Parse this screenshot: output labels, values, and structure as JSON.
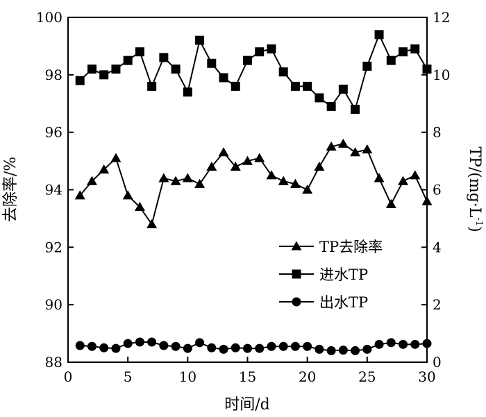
{
  "chart_data": {
    "type": "line",
    "xlabel": "时间/d",
    "ylabel_left": "去除率/%",
    "ylabel_right": "TP/(mg·L",
    "ylabel_right_sup": "-1",
    "ylabel_right_close": ")",
    "xlim": [
      0,
      30
    ],
    "ylim_left": [
      88,
      100
    ],
    "ylim_right": [
      0,
      12
    ],
    "xticks": [
      0,
      5,
      10,
      15,
      20,
      25,
      30
    ],
    "yticks_left": [
      88,
      90,
      92,
      94,
      96,
      98,
      100
    ],
    "yticks_right": [
      0,
      2,
      4,
      6,
      8,
      10,
      12
    ],
    "grid": false,
    "legend_position": "center-right",
    "series": [
      {
        "name": "TP去除率",
        "axis": "left",
        "marker": "triangle",
        "x": [
          1,
          2,
          3,
          4,
          5,
          6,
          7,
          8,
          9,
          10,
          11,
          12,
          13,
          14,
          15,
          16,
          17,
          18,
          19,
          20,
          21,
          22,
          23,
          24,
          25,
          26,
          27,
          28,
          29,
          30
        ],
        "values": [
          93.8,
          94.3,
          94.7,
          95.1,
          93.8,
          93.4,
          92.8,
          94.4,
          94.3,
          94.4,
          94.2,
          94.8,
          95.3,
          94.8,
          95.0,
          95.1,
          94.5,
          94.3,
          94.2,
          94.0,
          94.8,
          95.5,
          95.6,
          95.3,
          95.4,
          94.4,
          93.5,
          94.3,
          94.5,
          93.6
        ]
      },
      {
        "name": "进水TP",
        "axis": "right",
        "marker": "square",
        "x": [
          1,
          2,
          3,
          4,
          5,
          6,
          7,
          8,
          9,
          10,
          11,
          12,
          13,
          14,
          15,
          16,
          17,
          18,
          19,
          20,
          21,
          22,
          23,
          24,
          25,
          26,
          27,
          28,
          29,
          30
        ],
        "values": [
          9.8,
          10.2,
          10.0,
          10.2,
          10.5,
          10.8,
          9.6,
          10.6,
          10.2,
          9.4,
          11.2,
          10.4,
          9.9,
          9.6,
          10.5,
          10.8,
          10.9,
          10.1,
          9.6,
          9.6,
          9.2,
          8.9,
          9.5,
          8.8,
          10.3,
          11.4,
          10.5,
          10.8,
          10.9,
          10.2
        ]
      },
      {
        "name": "出水TP",
        "axis": "right",
        "marker": "circle",
        "x": [
          1,
          2,
          3,
          4,
          5,
          6,
          7,
          8,
          9,
          10,
          11,
          12,
          13,
          14,
          15,
          16,
          17,
          18,
          19,
          20,
          21,
          22,
          23,
          24,
          25,
          26,
          27,
          28,
          29,
          30
        ],
        "values": [
          0.58,
          0.55,
          0.5,
          0.48,
          0.65,
          0.7,
          0.7,
          0.58,
          0.55,
          0.48,
          0.68,
          0.5,
          0.45,
          0.5,
          0.48,
          0.48,
          0.55,
          0.55,
          0.55,
          0.55,
          0.45,
          0.4,
          0.42,
          0.4,
          0.45,
          0.62,
          0.68,
          0.62,
          0.62,
          0.65
        ]
      }
    ]
  }
}
